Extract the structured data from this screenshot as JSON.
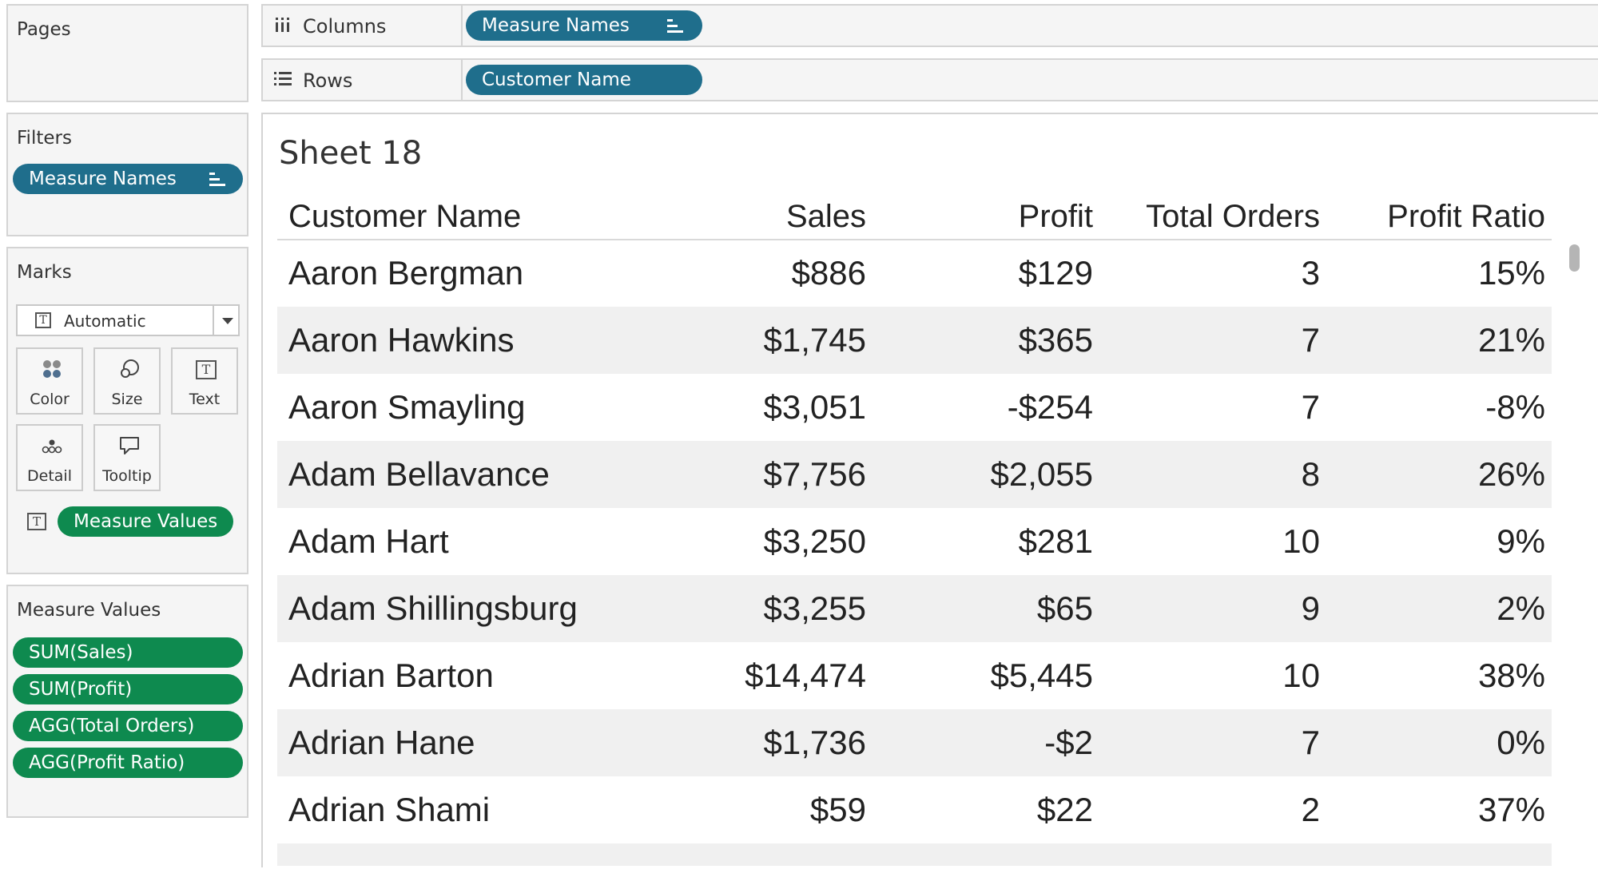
{
  "pages": {
    "title": "Pages"
  },
  "filters": {
    "title": "Filters",
    "pill": "Measure Names"
  },
  "marks": {
    "title": "Marks",
    "type": "Automatic",
    "buttons": {
      "color": "Color",
      "size": "Size",
      "text": "Text",
      "detail": "Detail",
      "tooltip": "Tooltip"
    },
    "text_pill": "Measure Values"
  },
  "measure_values": {
    "title": "Measure Values",
    "items": [
      "SUM(Sales)",
      "SUM(Profit)",
      "AGG(Total Orders)",
      "AGG(Profit Ratio)"
    ]
  },
  "shelves": {
    "columns": {
      "label": "Columns",
      "pill": "Measure Names"
    },
    "rows": {
      "label": "Rows",
      "pill": "Customer Name"
    }
  },
  "sheet": {
    "title": "Sheet 18",
    "headers": {
      "name": "Customer Name",
      "sales": "Sales",
      "profit": "Profit",
      "orders": "Total Orders",
      "ratio": "Profit Ratio"
    },
    "rows": [
      {
        "name": "Aaron Bergman",
        "sales": "$886",
        "profit": "$129",
        "orders": "3",
        "ratio": "15%"
      },
      {
        "name": "Aaron Hawkins",
        "sales": "$1,745",
        "profit": "$365",
        "orders": "7",
        "ratio": "21%"
      },
      {
        "name": "Aaron Smayling",
        "sales": "$3,051",
        "profit": "-$254",
        "orders": "7",
        "ratio": "-8%"
      },
      {
        "name": "Adam Bellavance",
        "sales": "$7,756",
        "profit": "$2,055",
        "orders": "8",
        "ratio": "26%"
      },
      {
        "name": "Adam Hart",
        "sales": "$3,250",
        "profit": "$281",
        "orders": "10",
        "ratio": "9%"
      },
      {
        "name": "Adam Shillingsburg",
        "sales": "$3,255",
        "profit": "$65",
        "orders": "9",
        "ratio": "2%"
      },
      {
        "name": "Adrian Barton",
        "sales": "$14,474",
        "profit": "$5,445",
        "orders": "10",
        "ratio": "38%"
      },
      {
        "name": "Adrian Hane",
        "sales": "$1,736",
        "profit": "-$2",
        "orders": "7",
        "ratio": "0%"
      },
      {
        "name": "Adrian Shami",
        "sales": "$59",
        "profit": "$22",
        "orders": "2",
        "ratio": "37%"
      }
    ]
  },
  "colors": {
    "dimension_pill": "#1f6e8c",
    "measure_pill": "#0e8a4f",
    "alt_row": "#f0f0f0"
  }
}
